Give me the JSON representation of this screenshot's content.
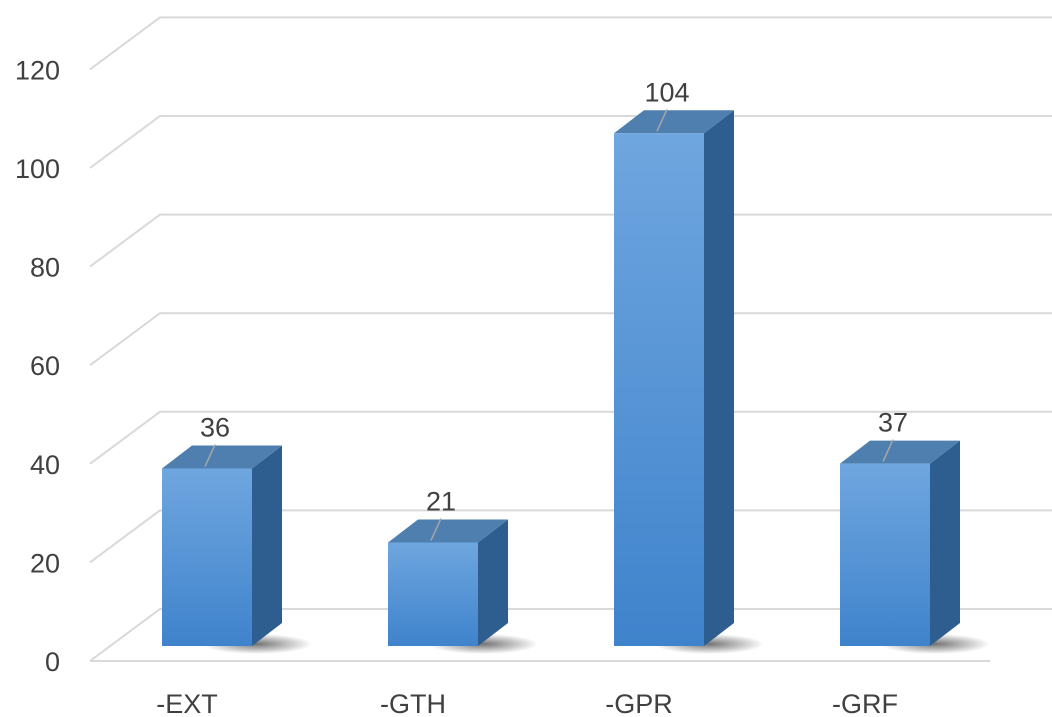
{
  "chart_data": {
    "type": "bar",
    "style": "3d-clustered-column",
    "categories": [
      "-EXT",
      "-GTH",
      "-GPR",
      "-GRF"
    ],
    "values": [
      36,
      21,
      104,
      37
    ],
    "data_labels": [
      "36",
      "21",
      "104",
      "37"
    ],
    "y_ticks": [
      "0",
      "20",
      "40",
      "60",
      "80",
      "100",
      "120"
    ],
    "ylim": [
      0,
      120
    ],
    "title": "",
    "xlabel": "",
    "ylabel": "",
    "grid": true,
    "legend": "none",
    "colors": {
      "bar_front_top": "#6fa6df",
      "bar_front_bottom": "#3f83cc",
      "bar_side": "#2e5e8f",
      "bar_top": "#4f7fae",
      "grid": "#d9d9d9",
      "text": "#404040"
    }
  }
}
